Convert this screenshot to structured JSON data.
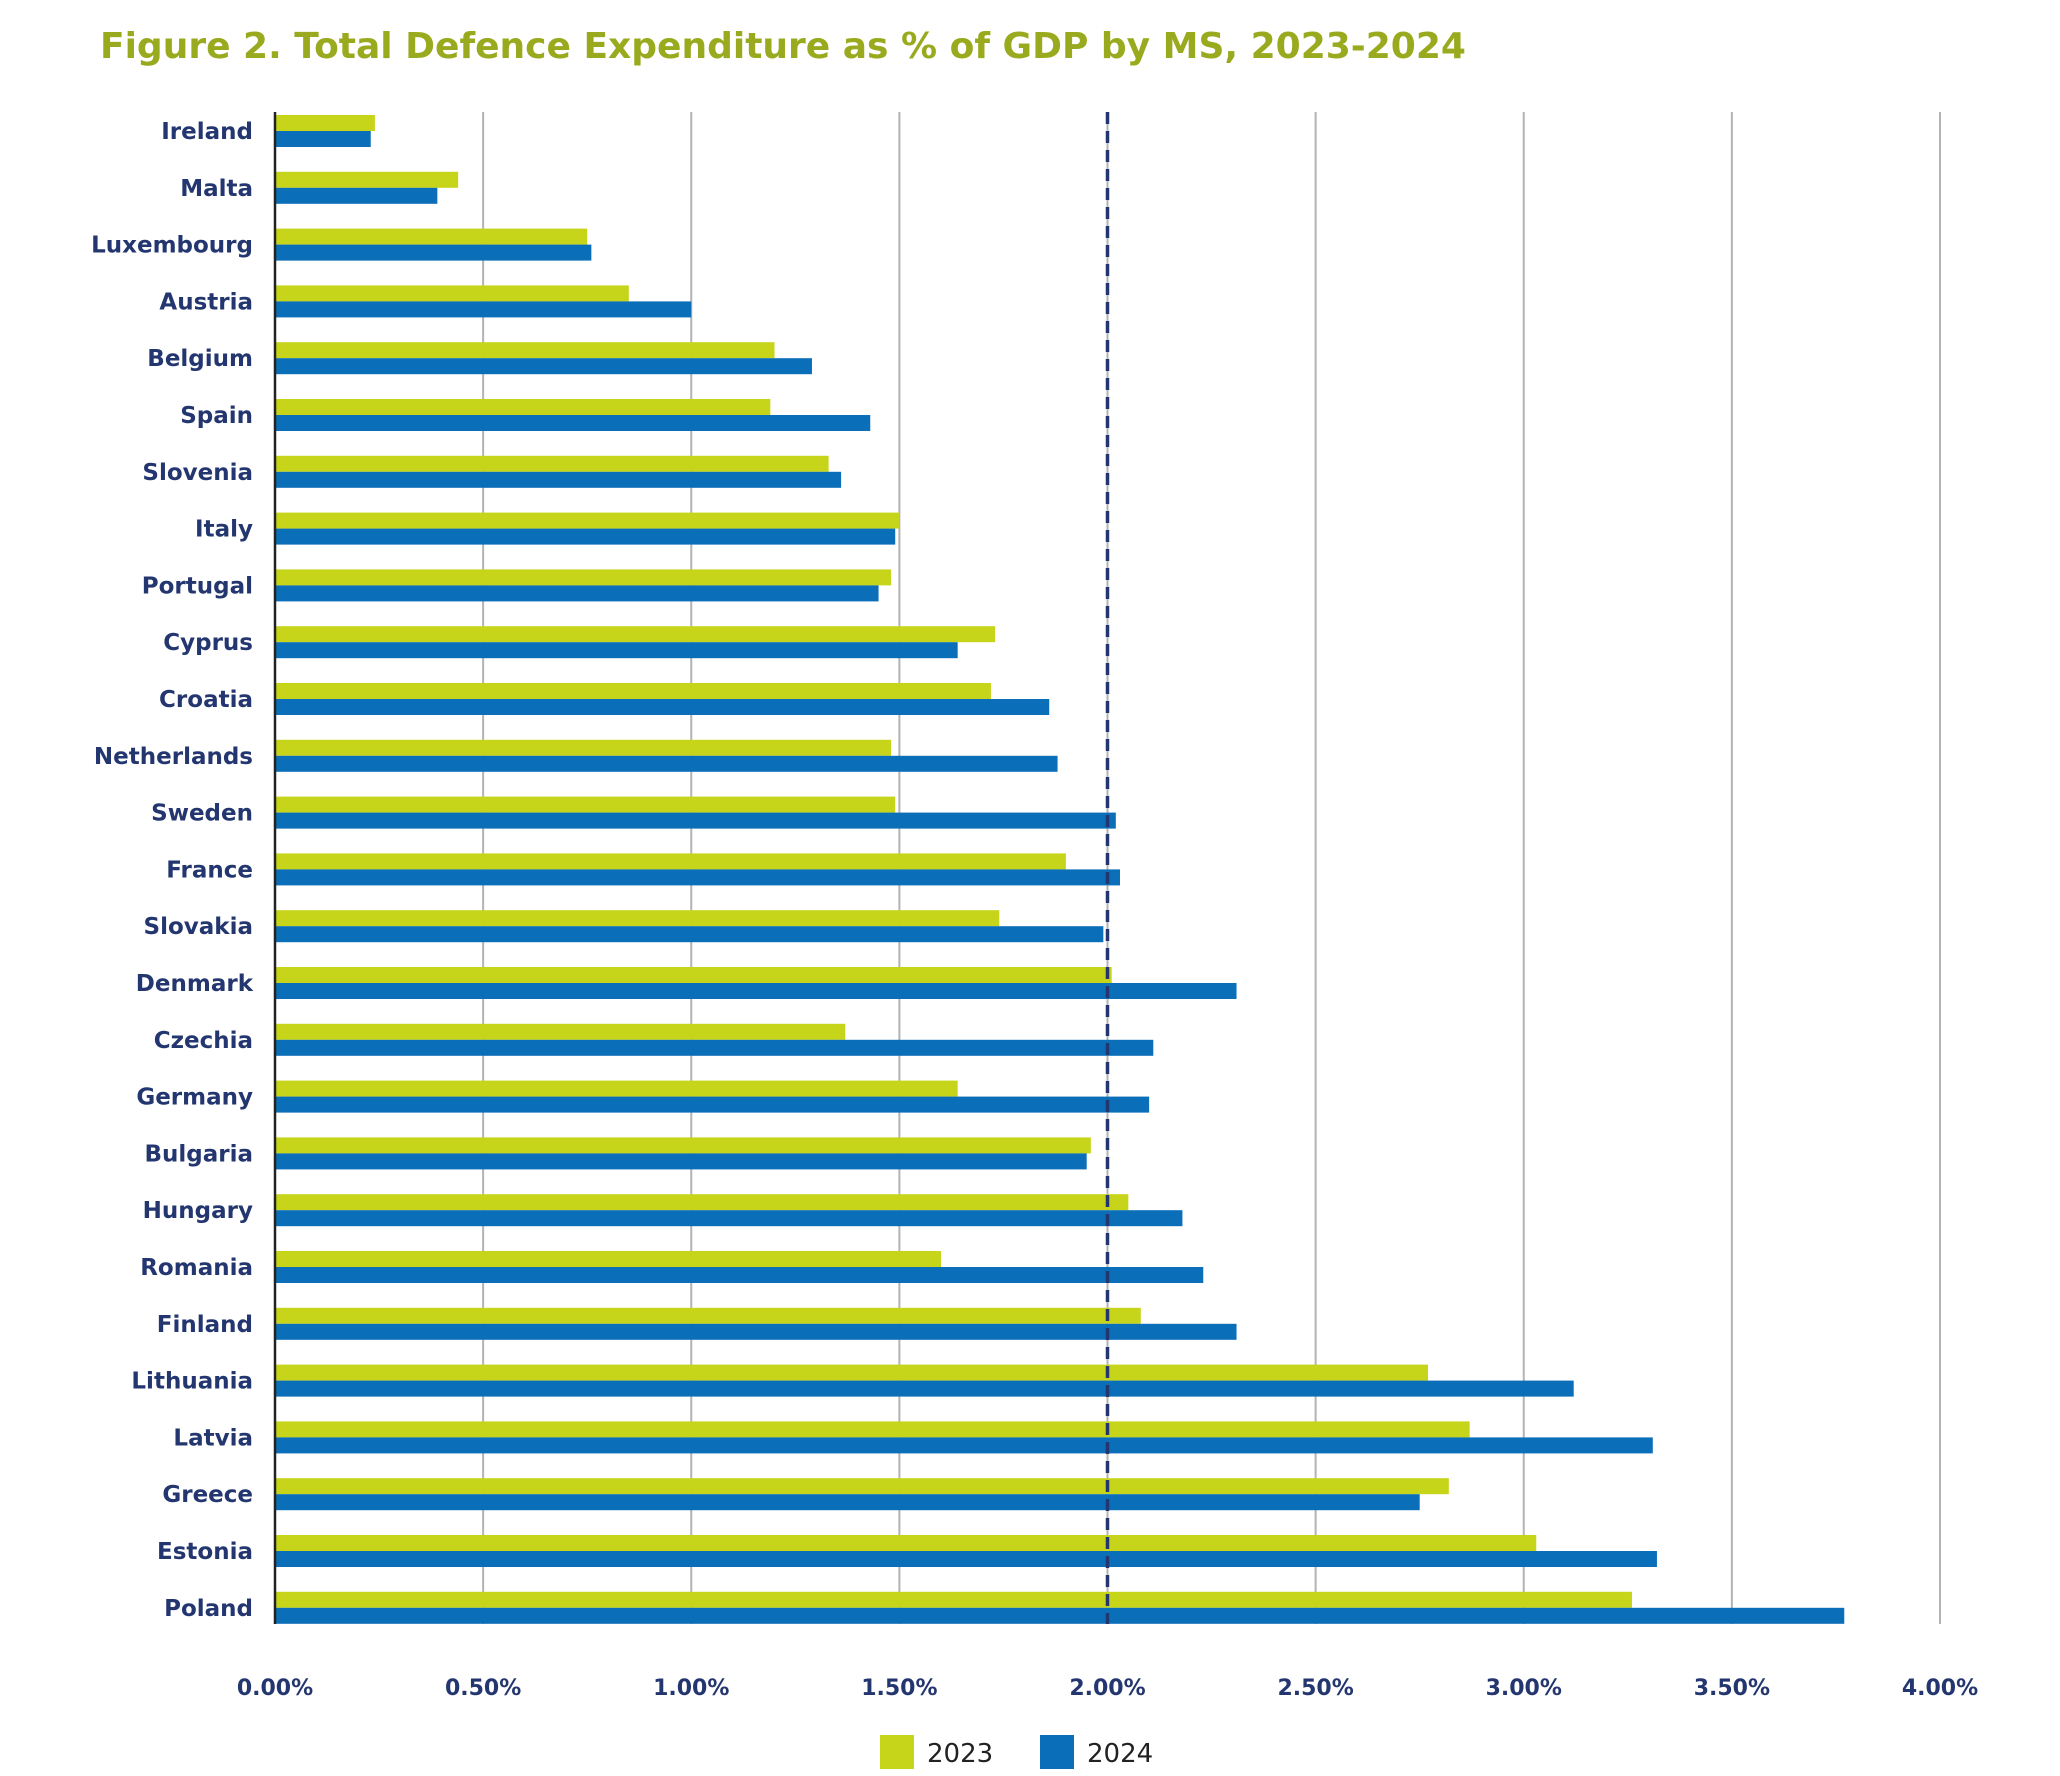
{
  "title": "Figure 2. Total Defence Expenditure as % of GDP by MS, 2023-2024",
  "colors": {
    "title": "#9aaa1e",
    "s2023": "#c6d41a",
    "s2024": "#0b6eb8",
    "labels": "#23366f",
    "target_line": "#23366f",
    "grid": "#b3b3b3"
  },
  "chart_data": {
    "type": "bar",
    "orientation": "horizontal",
    "title": "Figure 2. Total Defence Expenditure as % of GDP by MS, 2023-2024",
    "xlabel": "",
    "ylabel": "",
    "xlim": [
      0,
      4
    ],
    "x_ticks": [
      "0.00%",
      "0.50%",
      "1.00%",
      "1.50%",
      "2.00%",
      "2.50%",
      "3.00%",
      "3.50%",
      "4.00%"
    ],
    "grid": "vertical",
    "reference_line": {
      "x": 2.0,
      "style": "dashed"
    },
    "legend_position": "bottom-center",
    "categories": [
      "Ireland",
      "Malta",
      "Luxembourg",
      "Austria",
      "Belgium",
      "Spain",
      "Slovenia",
      "Italy",
      "Portugal",
      "Cyprus",
      "Croatia",
      "Netherlands",
      "Sweden",
      "France",
      "Slovakia",
      "Denmark",
      "Czechia",
      "Germany",
      "Bulgaria",
      "Hungary",
      "Romania",
      "Finland",
      "Lithuania",
      "Latvia",
      "Greece",
      "Estonia",
      "Poland"
    ],
    "series": [
      {
        "name": "2023",
        "values": [
          0.24,
          0.44,
          0.75,
          0.85,
          1.2,
          1.19,
          1.33,
          1.5,
          1.48,
          1.73,
          1.72,
          1.48,
          1.49,
          1.9,
          1.74,
          2.01,
          1.37,
          1.64,
          1.96,
          2.05,
          1.6,
          2.08,
          2.77,
          2.87,
          2.82,
          3.03,
          3.26
        ]
      },
      {
        "name": "2024",
        "values": [
          0.23,
          0.39,
          0.76,
          1.0,
          1.29,
          1.43,
          1.36,
          1.49,
          1.45,
          1.64,
          1.86,
          1.88,
          2.02,
          2.03,
          1.99,
          2.31,
          2.11,
          2.1,
          1.95,
          2.18,
          2.23,
          2.31,
          3.12,
          3.31,
          2.75,
          3.32,
          3.77
        ]
      }
    ]
  }
}
